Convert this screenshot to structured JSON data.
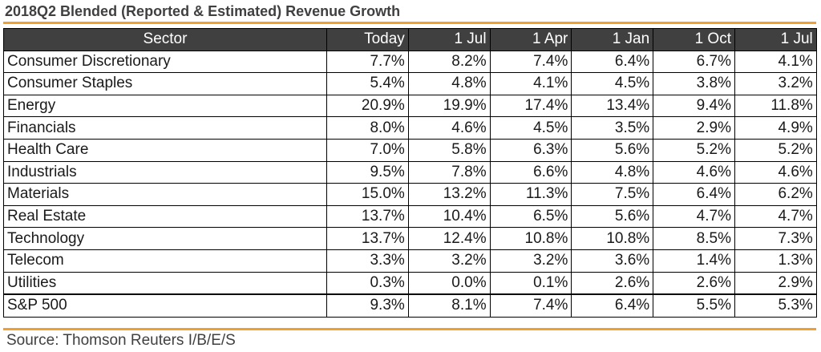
{
  "title": "2018Q2 Blended (Reported & Estimated) Revenue Growth",
  "colors": {
    "accent_rule": "#f0a030",
    "header_bg": "#404040",
    "header_text": "#ffffff"
  },
  "source": "Source: Thomson Reuters I/B/E/S",
  "chart_data": {
    "type": "table",
    "title": "2018Q2 Blended (Reported & Estimated) Revenue Growth",
    "columns": [
      "Sector",
      "Today",
      "1 Jul",
      "1 Apr",
      "1 Jan",
      "1 Oct",
      "1 Jul"
    ],
    "rows": [
      [
        "Consumer Discretionary",
        "7.7%",
        "8.2%",
        "7.4%",
        "6.4%",
        "6.7%",
        "4.1%"
      ],
      [
        "Consumer Staples",
        "5.4%",
        "4.8%",
        "4.1%",
        "4.5%",
        "3.8%",
        "3.2%"
      ],
      [
        "Energy",
        "20.9%",
        "19.9%",
        "17.4%",
        "13.4%",
        "9.4%",
        "11.8%"
      ],
      [
        "Financials",
        "8.0%",
        "4.6%",
        "4.5%",
        "3.5%",
        "2.9%",
        "4.9%"
      ],
      [
        "Health Care",
        "7.0%",
        "5.8%",
        "6.3%",
        "5.6%",
        "5.2%",
        "5.2%"
      ],
      [
        "Industrials",
        "9.5%",
        "7.8%",
        "6.6%",
        "4.8%",
        "4.6%",
        "4.6%"
      ],
      [
        "Materials",
        "15.0%",
        "13.2%",
        "11.3%",
        "7.5%",
        "6.4%",
        "6.2%"
      ],
      [
        "Real Estate",
        "13.7%",
        "10.4%",
        "6.5%",
        "5.6%",
        "4.7%",
        "4.7%"
      ],
      [
        "Technology",
        "13.7%",
        "12.4%",
        "10.8%",
        "10.8%",
        "8.5%",
        "7.3%"
      ],
      [
        "Telecom",
        "3.3%",
        "3.2%",
        "3.2%",
        "3.6%",
        "1.4%",
        "1.3%"
      ],
      [
        "Utilities",
        "0.3%",
        "0.0%",
        "0.1%",
        "2.6%",
        "2.6%",
        "2.9%"
      ]
    ],
    "total_row": [
      "S&P 500",
      "9.3%",
      "8.1%",
      "7.4%",
      "6.4%",
      "5.5%",
      "5.3%"
    ]
  }
}
